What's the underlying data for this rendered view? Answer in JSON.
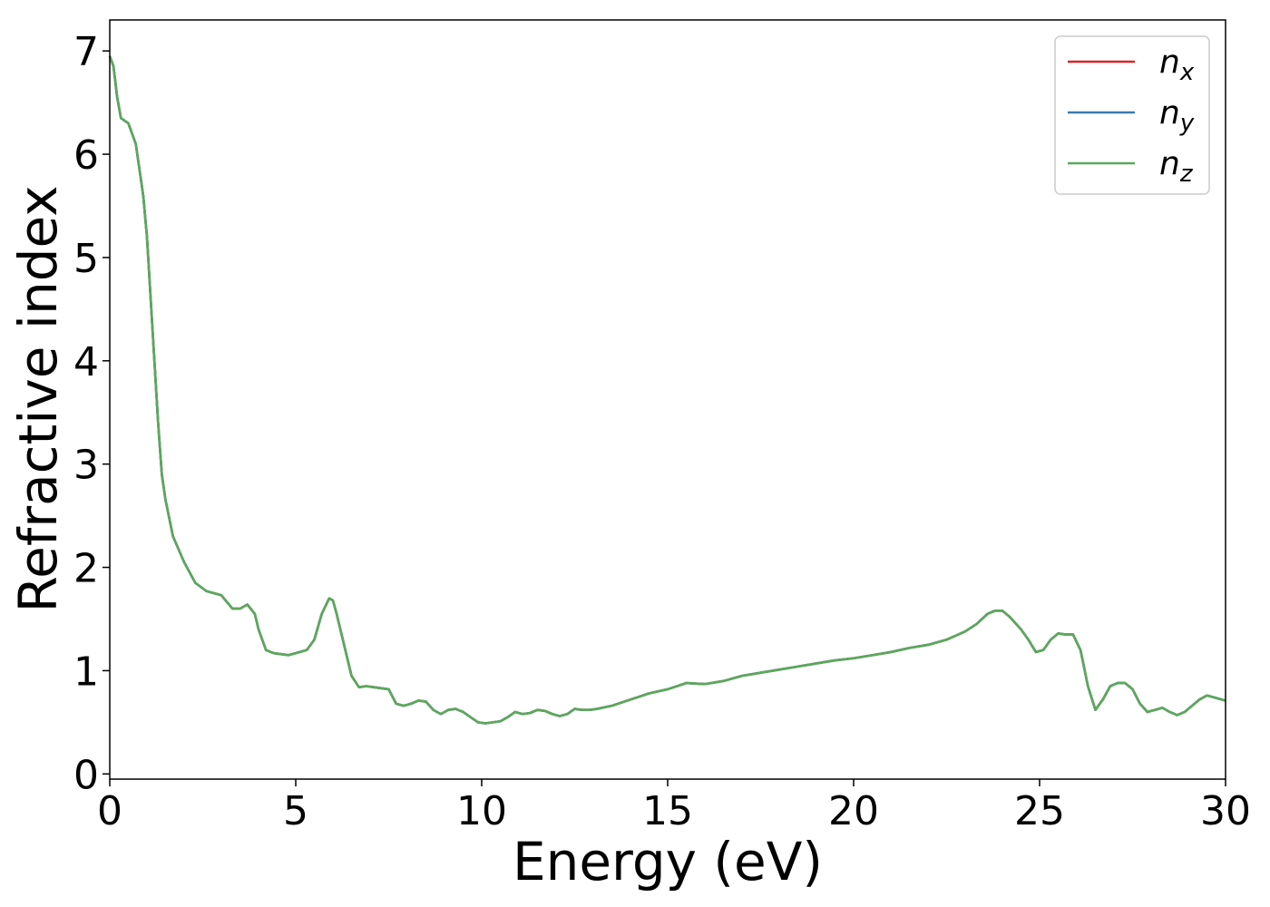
{
  "chart_data": {
    "type": "line",
    "title": "",
    "xlabel": "Energy (eV)",
    "ylabel": "Refractive index",
    "xlim": [
      0,
      30
    ],
    "ylim": [
      -0.05,
      7.3
    ],
    "xticks": [
      0,
      5,
      10,
      15,
      20,
      25,
      30
    ],
    "yticks": [
      0,
      1,
      2,
      3,
      4,
      5,
      6,
      7
    ],
    "grid": false,
    "legend_position": "top-right",
    "series": [
      {
        "name": "n",
        "subscript": "x",
        "color": "#d62728",
        "x": [
          0,
          0.1,
          0.2,
          0.3,
          0.5,
          0.7,
          0.9,
          1.0,
          1.1,
          1.2,
          1.3,
          1.4,
          1.5,
          1.7,
          2.0,
          2.3,
          2.6,
          3.0,
          3.3,
          3.5,
          3.7,
          3.9,
          4.0,
          4.2,
          4.4,
          4.6,
          4.8,
          5.0,
          5.3,
          5.5,
          5.7,
          5.9,
          6.0,
          6.1,
          6.3,
          6.5,
          6.7,
          6.9,
          7.1,
          7.3,
          7.5,
          7.7,
          7.9,
          8.1,
          8.3,
          8.5,
          8.7,
          8.9,
          9.1,
          9.3,
          9.5,
          9.7,
          9.9,
          10.1,
          10.3,
          10.5,
          10.7,
          10.9,
          11.1,
          11.3,
          11.5,
          11.7,
          11.9,
          12.1,
          12.3,
          12.5,
          12.7,
          12.9,
          13.1,
          13.5,
          14.0,
          14.5,
          15.0,
          15.5,
          16.0,
          16.5,
          17.0,
          17.5,
          18.0,
          18.5,
          19.0,
          19.5,
          20.0,
          20.5,
          21.0,
          21.5,
          22.0,
          22.5,
          23.0,
          23.3,
          23.6,
          23.8,
          24.0,
          24.2,
          24.5,
          24.7,
          24.9,
          25.1,
          25.3,
          25.5,
          25.7,
          25.9,
          26.1,
          26.3,
          26.5,
          26.7,
          26.9,
          27.1,
          27.3,
          27.5,
          27.7,
          27.9,
          28.1,
          28.3,
          28.5,
          28.7,
          28.9,
          29.1,
          29.3,
          29.5,
          29.7,
          30.0
        ],
        "y": [
          6.95,
          6.85,
          6.55,
          6.35,
          6.3,
          6.1,
          5.6,
          5.2,
          4.6,
          4.0,
          3.4,
          2.9,
          2.65,
          2.3,
          2.05,
          1.85,
          1.77,
          1.73,
          1.6,
          1.6,
          1.64,
          1.55,
          1.4,
          1.2,
          1.17,
          1.16,
          1.15,
          1.17,
          1.2,
          1.3,
          1.55,
          1.7,
          1.68,
          1.55,
          1.25,
          0.95,
          0.84,
          0.85,
          0.84,
          0.83,
          0.82,
          0.68,
          0.66,
          0.68,
          0.71,
          0.7,
          0.62,
          0.58,
          0.62,
          0.63,
          0.6,
          0.55,
          0.5,
          0.49,
          0.5,
          0.51,
          0.55,
          0.6,
          0.58,
          0.59,
          0.62,
          0.61,
          0.58,
          0.56,
          0.58,
          0.63,
          0.62,
          0.62,
          0.63,
          0.66,
          0.72,
          0.78,
          0.82,
          0.88,
          0.87,
          0.9,
          0.95,
          0.98,
          1.01,
          1.04,
          1.07,
          1.1,
          1.12,
          1.15,
          1.18,
          1.22,
          1.25,
          1.3,
          1.38,
          1.45,
          1.55,
          1.58,
          1.58,
          1.52,
          1.4,
          1.3,
          1.18,
          1.2,
          1.3,
          1.36,
          1.35,
          1.35,
          1.2,
          0.85,
          0.62,
          0.72,
          0.85,
          0.88,
          0.88,
          0.82,
          0.68,
          0.6,
          0.62,
          0.64,
          0.6,
          0.57,
          0.6,
          0.66,
          0.72,
          0.76,
          0.74,
          0.71
        ]
      },
      {
        "name": "n",
        "subscript": "y",
        "color": "#3b7bb0",
        "x": [
          0,
          0.1,
          0.2,
          0.3,
          0.5,
          0.7,
          0.9,
          1.0,
          1.1,
          1.2,
          1.3,
          1.4,
          1.5,
          1.7,
          2.0,
          2.3,
          2.6,
          3.0,
          3.3,
          3.5,
          3.7,
          3.9,
          4.0,
          4.2,
          4.4,
          4.6,
          4.8,
          5.0,
          5.3,
          5.5,
          5.7,
          5.9,
          6.0,
          6.1,
          6.3,
          6.5,
          6.7,
          6.9,
          7.1,
          7.3,
          7.5,
          7.7,
          7.9,
          8.1,
          8.3,
          8.5,
          8.7,
          8.9,
          9.1,
          9.3,
          9.5,
          9.7,
          9.9,
          10.1,
          10.3,
          10.5,
          10.7,
          10.9,
          11.1,
          11.3,
          11.5,
          11.7,
          11.9,
          12.1,
          12.3,
          12.5,
          12.7,
          12.9,
          13.1,
          13.5,
          14.0,
          14.5,
          15.0,
          15.5,
          16.0,
          16.5,
          17.0,
          17.5,
          18.0,
          18.5,
          19.0,
          19.5,
          20.0,
          20.5,
          21.0,
          21.5,
          22.0,
          22.5,
          23.0,
          23.3,
          23.6,
          23.8,
          24.0,
          24.2,
          24.5,
          24.7,
          24.9,
          25.1,
          25.3,
          25.5,
          25.7,
          25.9,
          26.1,
          26.3,
          26.5,
          26.7,
          26.9,
          27.1,
          27.3,
          27.5,
          27.7,
          27.9,
          28.1,
          28.3,
          28.5,
          28.7,
          28.9,
          29.1,
          29.3,
          29.5,
          29.7,
          30.0
        ],
        "y": [
          6.95,
          6.85,
          6.55,
          6.35,
          6.3,
          6.1,
          5.6,
          5.2,
          4.6,
          4.0,
          3.4,
          2.9,
          2.65,
          2.3,
          2.05,
          1.85,
          1.77,
          1.73,
          1.6,
          1.6,
          1.64,
          1.55,
          1.4,
          1.2,
          1.17,
          1.16,
          1.15,
          1.17,
          1.2,
          1.3,
          1.55,
          1.7,
          1.68,
          1.55,
          1.25,
          0.95,
          0.84,
          0.85,
          0.84,
          0.83,
          0.82,
          0.68,
          0.66,
          0.68,
          0.71,
          0.7,
          0.62,
          0.58,
          0.62,
          0.63,
          0.6,
          0.55,
          0.5,
          0.49,
          0.5,
          0.51,
          0.55,
          0.6,
          0.58,
          0.59,
          0.62,
          0.61,
          0.58,
          0.56,
          0.58,
          0.63,
          0.62,
          0.62,
          0.63,
          0.66,
          0.72,
          0.78,
          0.82,
          0.88,
          0.87,
          0.9,
          0.95,
          0.98,
          1.01,
          1.04,
          1.07,
          1.1,
          1.12,
          1.15,
          1.18,
          1.22,
          1.25,
          1.3,
          1.38,
          1.45,
          1.55,
          1.58,
          1.58,
          1.52,
          1.4,
          1.3,
          1.18,
          1.2,
          1.3,
          1.36,
          1.35,
          1.35,
          1.2,
          0.85,
          0.62,
          0.72,
          0.85,
          0.88,
          0.88,
          0.82,
          0.68,
          0.6,
          0.62,
          0.64,
          0.6,
          0.57,
          0.6,
          0.66,
          0.72,
          0.76,
          0.74,
          0.71
        ]
      },
      {
        "name": "n",
        "subscript": "z",
        "color": "#5aa95a",
        "x": [
          0,
          0.1,
          0.2,
          0.3,
          0.5,
          0.7,
          0.9,
          1.0,
          1.1,
          1.2,
          1.3,
          1.4,
          1.5,
          1.7,
          2.0,
          2.3,
          2.6,
          3.0,
          3.3,
          3.5,
          3.7,
          3.9,
          4.0,
          4.2,
          4.4,
          4.6,
          4.8,
          5.0,
          5.3,
          5.5,
          5.7,
          5.9,
          6.0,
          6.1,
          6.3,
          6.5,
          6.7,
          6.9,
          7.1,
          7.3,
          7.5,
          7.7,
          7.9,
          8.1,
          8.3,
          8.5,
          8.7,
          8.9,
          9.1,
          9.3,
          9.5,
          9.7,
          9.9,
          10.1,
          10.3,
          10.5,
          10.7,
          10.9,
          11.1,
          11.3,
          11.5,
          11.7,
          11.9,
          12.1,
          12.3,
          12.5,
          12.7,
          12.9,
          13.1,
          13.5,
          14.0,
          14.5,
          15.0,
          15.5,
          16.0,
          16.5,
          17.0,
          17.5,
          18.0,
          18.5,
          19.0,
          19.5,
          20.0,
          20.5,
          21.0,
          21.5,
          22.0,
          22.5,
          23.0,
          23.3,
          23.6,
          23.8,
          24.0,
          24.2,
          24.5,
          24.7,
          24.9,
          25.1,
          25.3,
          25.5,
          25.7,
          25.9,
          26.1,
          26.3,
          26.5,
          26.7,
          26.9,
          27.1,
          27.3,
          27.5,
          27.7,
          27.9,
          28.1,
          28.3,
          28.5,
          28.7,
          28.9,
          29.1,
          29.3,
          29.5,
          29.7,
          30.0
        ],
        "y": [
          6.95,
          6.85,
          6.55,
          6.35,
          6.3,
          6.1,
          5.6,
          5.2,
          4.6,
          4.0,
          3.4,
          2.9,
          2.65,
          2.3,
          2.05,
          1.85,
          1.77,
          1.73,
          1.6,
          1.6,
          1.64,
          1.55,
          1.4,
          1.2,
          1.17,
          1.16,
          1.15,
          1.17,
          1.2,
          1.3,
          1.55,
          1.7,
          1.68,
          1.55,
          1.25,
          0.95,
          0.84,
          0.85,
          0.84,
          0.83,
          0.82,
          0.68,
          0.66,
          0.68,
          0.71,
          0.7,
          0.62,
          0.58,
          0.62,
          0.63,
          0.6,
          0.55,
          0.5,
          0.49,
          0.5,
          0.51,
          0.55,
          0.6,
          0.58,
          0.59,
          0.62,
          0.61,
          0.58,
          0.56,
          0.58,
          0.63,
          0.62,
          0.62,
          0.63,
          0.66,
          0.72,
          0.78,
          0.82,
          0.88,
          0.87,
          0.9,
          0.95,
          0.98,
          1.01,
          1.04,
          1.07,
          1.1,
          1.12,
          1.15,
          1.18,
          1.22,
          1.25,
          1.3,
          1.38,
          1.45,
          1.55,
          1.58,
          1.58,
          1.52,
          1.4,
          1.3,
          1.18,
          1.2,
          1.3,
          1.36,
          1.35,
          1.35,
          1.2,
          0.85,
          0.62,
          0.72,
          0.85,
          0.88,
          0.88,
          0.82,
          0.68,
          0.6,
          0.62,
          0.64,
          0.6,
          0.57,
          0.6,
          0.66,
          0.72,
          0.76,
          0.74,
          0.71
        ]
      }
    ]
  }
}
